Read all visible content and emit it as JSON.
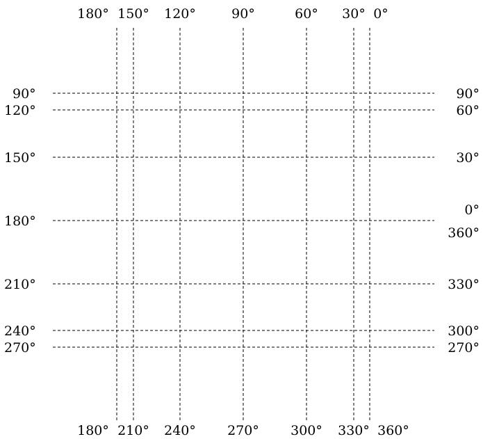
{
  "vertical_lines": [
    {
      "id": "v1",
      "top_label": "180°",
      "bottom_label": "180°"
    },
    {
      "id": "v2",
      "top_label": "150°",
      "bottom_label": "210°"
    },
    {
      "id": "v3",
      "top_label": "120°",
      "bottom_label": "240°"
    },
    {
      "id": "v4",
      "top_label": "90°",
      "bottom_label": "270°"
    },
    {
      "id": "v5",
      "top_label": "60°",
      "bottom_label": "300°"
    },
    {
      "id": "v6",
      "top_label": "30°",
      "bottom_label": "330°"
    },
    {
      "id": "v7",
      "top_label": "0°",
      "bottom_label": "360°"
    }
  ],
  "horizontal_lines": [
    {
      "id": "h1",
      "left_label": "90°",
      "right_label": "90°"
    },
    {
      "id": "h2",
      "left_label": "120°",
      "right_label": "60°"
    },
    {
      "id": "h3",
      "left_label": "150°",
      "right_label": "30°"
    },
    {
      "id": "h4",
      "left_label": "180°",
      "right_label": "0°",
      "right_label_2": "360°"
    },
    {
      "id": "h5",
      "left_label": "210°",
      "right_label": "330°"
    },
    {
      "id": "h6",
      "left_label": "240°",
      "right_label": "300°"
    },
    {
      "id": "h7",
      "left_label": "270°",
      "right_label": "270°"
    }
  ],
  "colors": {
    "line": "#000000",
    "text": "#000000",
    "background": "#ffffff"
  }
}
